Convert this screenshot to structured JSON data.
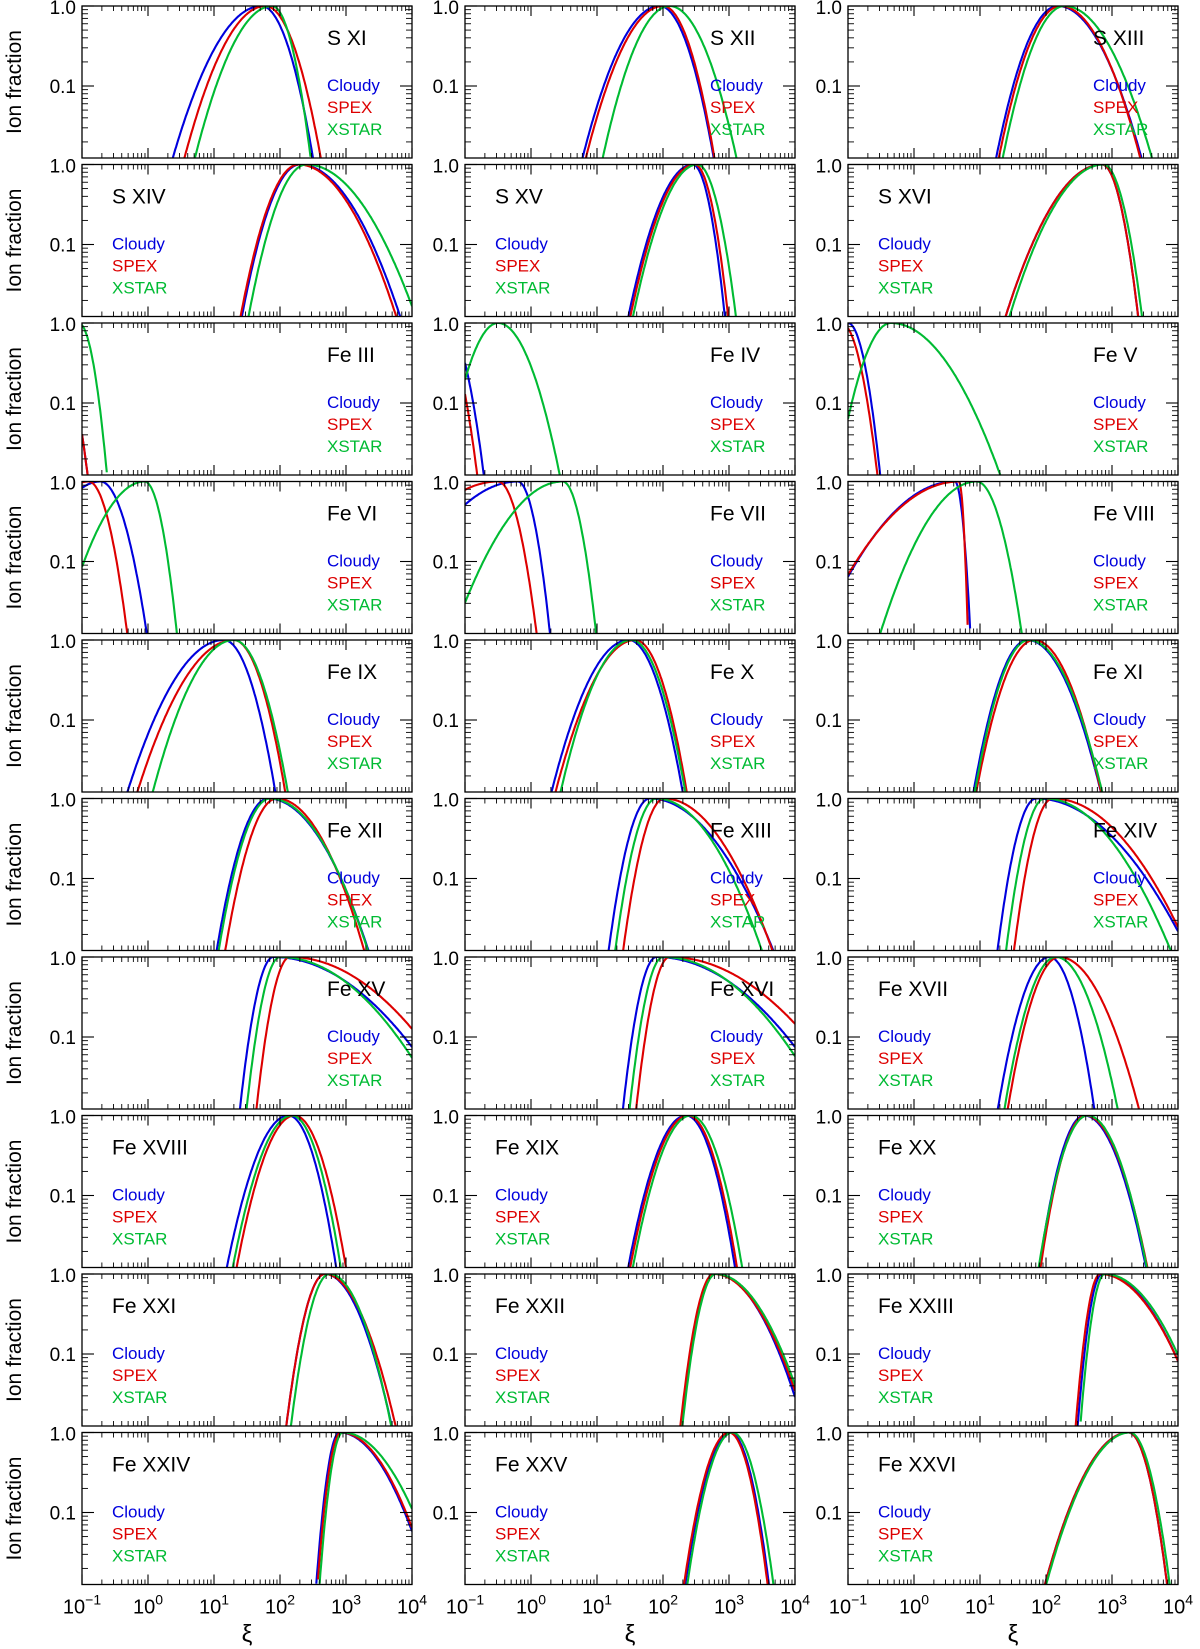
{
  "figure": {
    "ylabel": "Ion fraction",
    "xlabel": "ξ"
  },
  "legend": [
    {
      "name": "Cloudy",
      "color": "#0000dd"
    },
    {
      "name": "SPEX",
      "color": "#dd0000"
    },
    {
      "name": "XSTAR",
      "color": "#00bb33"
    }
  ],
  "axes": {
    "x_log_range": [
      -1,
      4
    ],
    "y_log_range": [
      -1.9,
      0
    ],
    "x_tick_labels": [
      {
        "base": "10",
        "exp": "−1"
      },
      {
        "base": "10",
        "exp": "0"
      },
      {
        "base": "10",
        "exp": "1"
      },
      {
        "base": "10",
        "exp": "2"
      },
      {
        "base": "10",
        "exp": "3"
      },
      {
        "base": "10",
        "exp": "4"
      }
    ],
    "y_tick_labels": [
      "1.0",
      "0.1"
    ]
  },
  "chart_data": {
    "type": "line",
    "xscale": "log",
    "yscale": "log",
    "xlabel": "ξ",
    "ylabel": "Ion fraction",
    "xlim": [
      0.1,
      10000
    ],
    "ylim": [
      0.0126,
      1.0
    ],
    "series_names": [
      "Cloudy",
      "SPEX",
      "XSTAR"
    ],
    "panels": [
      {
        "ion": "S XI",
        "label_pos": "right",
        "curves": [
          [
            1.72,
            0.69,
            -0.4
          ],
          [
            1.78,
            0.63,
            -0.43
          ],
          [
            1.88,
            0.6,
            -0.3
          ]
        ]
      },
      {
        "ion": "S XII",
        "label_pos": "right",
        "curves": [
          [
            1.95,
            0.6,
            -0.42
          ],
          [
            2.0,
            0.6,
            -0.4
          ],
          [
            2.1,
            0.52,
            -0.52
          ]
        ]
      },
      {
        "ion": "S XIII",
        "label_pos": "right",
        "curves": [
          [
            2.18,
            0.48,
            -0.65
          ],
          [
            2.22,
            0.48,
            -0.62
          ],
          [
            2.28,
            0.48,
            -0.68
          ]
        ]
      },
      {
        "ion": "S XIV",
        "label_pos": "left",
        "curves": [
          [
            2.3,
            0.45,
            -0.78
          ],
          [
            2.28,
            0.45,
            -0.76
          ],
          [
            2.4,
            0.45,
            -0.85
          ]
        ]
      },
      {
        "ion": "S XV",
        "label_pos": "left",
        "curves": [
          [
            2.45,
            0.5,
            -0.25
          ],
          [
            2.48,
            0.5,
            -0.26
          ],
          [
            2.52,
            0.5,
            -0.3
          ]
        ]
      },
      {
        "ion": "S XVI",
        "label_pos": "left",
        "curves": [
          [
            2.85,
            0.75,
            -0.28
          ],
          [
            2.85,
            0.75,
            -0.28
          ],
          [
            2.87,
            0.73,
            -0.3
          ]
        ]
      },
      {
        "ion": "Fe III",
        "label_pos": "right",
        "curves": [
          [
            -1.5,
            0.3,
            -0.3
          ],
          [
            -1.5,
            0.3,
            -0.3
          ],
          [
            -1.05,
            0.45,
            -0.22
          ]
        ]
      },
      {
        "ion": "Fe IV",
        "label_pos": "right",
        "curves": [
          [
            -1.3,
            0.45,
            -0.3
          ],
          [
            -1.4,
            0.4,
            -0.3
          ],
          [
            -0.5,
            0.42,
            -0.48
          ]
        ]
      },
      {
        "ion": "Fe V",
        "label_pos": "right",
        "curves": [
          [
            -1.0,
            0.55,
            -0.25
          ],
          [
            -1.1,
            0.5,
            -0.28
          ],
          [
            -0.35,
            0.42,
            -0.85
          ]
        ]
      },
      {
        "ion": "Fe VI",
        "label_pos": "right",
        "curves": [
          [
            -0.72,
            0.7,
            -0.36
          ],
          [
            -0.9,
            0.68,
            -0.3
          ],
          [
            -0.05,
            0.65,
            -0.25
          ]
        ]
      },
      {
        "ion": "Fe VII",
        "label_pos": "right",
        "curves": [
          [
            -0.2,
            1.05,
            -0.25
          ],
          [
            -0.5,
            1.1,
            -0.3
          ],
          [
            0.48,
            0.85,
            -0.26
          ]
        ]
      },
      {
        "ion": "Fe VIII",
        "label_pos": "right",
        "curves": [
          [
            0.62,
            1.05,
            -0.12
          ],
          [
            0.68,
            1.1,
            -0.07
          ],
          [
            0.95,
            0.75,
            -0.35
          ]
        ]
      },
      {
        "ion": "Fe IX",
        "label_pos": "right",
        "curves": [
          [
            1.15,
            0.75,
            -0.4
          ],
          [
            1.3,
            0.75,
            -0.4
          ],
          [
            1.3,
            0.63,
            -0.42
          ]
        ]
      },
      {
        "ion": "Fe X",
        "label_pos": "right",
        "curves": [
          [
            1.48,
            0.6,
            -0.42
          ],
          [
            1.58,
            0.62,
            -0.4
          ],
          [
            1.52,
            0.55,
            -0.42
          ]
        ]
      },
      {
        "ion": "Fe XI",
        "label_pos": "right",
        "curves": [
          [
            1.72,
            0.42,
            -0.57
          ],
          [
            1.82,
            0.45,
            -0.52
          ],
          [
            1.74,
            0.42,
            -0.57
          ]
        ]
      },
      {
        "ion": "Fe XII",
        "label_pos": "right",
        "curves": [
          [
            1.82,
            0.4,
            -0.78
          ],
          [
            1.95,
            0.4,
            -0.68
          ],
          [
            1.85,
            0.4,
            -0.76
          ]
        ]
      },
      {
        "ion": "Fe XIII",
        "label_pos": "right",
        "curves": [
          [
            1.8,
            0.32,
            -0.96
          ],
          [
            2.02,
            0.32,
            -0.84
          ],
          [
            1.9,
            0.32,
            -0.82
          ]
        ]
      },
      {
        "ion": "Fe XIV",
        "label_pos": "right",
        "curves": [
          [
            1.85,
            0.3,
            -1.18
          ],
          [
            2.1,
            0.3,
            -1.06
          ],
          [
            1.98,
            0.3,
            -0.98
          ]
        ]
      },
      {
        "ion": "Fe XV",
        "label_pos": "right",
        "curves": [
          [
            1.9,
            0.26,
            -1.4
          ],
          [
            2.15,
            0.26,
            -1.38
          ],
          [
            2.0,
            0.26,
            -1.26
          ]
        ]
      },
      {
        "ion": "Fe XVI",
        "label_pos": "right",
        "curves": [
          [
            1.9,
            0.26,
            -1.4
          ],
          [
            2.1,
            0.26,
            -1.47
          ],
          [
            2.0,
            0.26,
            -1.27
          ]
        ]
      },
      {
        "ion": "Fe XVII",
        "label_pos": "left",
        "curves": [
          [
            2.05,
            0.4,
            -0.35
          ],
          [
            2.2,
            0.4,
            -0.62
          ],
          [
            2.15,
            0.4,
            -0.48
          ]
        ]
      },
      {
        "ion": "Fe XVIII",
        "label_pos": "left",
        "curves": [
          [
            2.13,
            0.48,
            -0.37
          ],
          [
            2.22,
            0.45,
            -0.4
          ],
          [
            2.18,
            0.46,
            -0.38
          ]
        ]
      },
      {
        "ion": "Fe XIX",
        "label_pos": "left",
        "curves": [
          [
            2.35,
            0.45,
            -0.38
          ],
          [
            2.38,
            0.45,
            -0.38
          ],
          [
            2.42,
            0.45,
            -0.4
          ]
        ]
      },
      {
        "ion": "Fe XX",
        "label_pos": "left",
        "curves": [
          [
            2.58,
            0.35,
            -0.48
          ],
          [
            2.6,
            0.35,
            -0.48
          ],
          [
            2.63,
            0.38,
            -0.46
          ]
        ]
      },
      {
        "ion": "Fe XXI",
        "label_pos": "left",
        "curves": [
          [
            2.68,
            0.3,
            -0.52
          ],
          [
            2.68,
            0.3,
            -0.55
          ],
          [
            2.75,
            0.3,
            -0.48
          ]
        ]
      },
      {
        "ion": "Fe XXII",
        "label_pos": "left",
        "curves": [
          [
            2.79,
            0.26,
            -0.69
          ],
          [
            2.77,
            0.26,
            -0.72
          ],
          [
            2.8,
            0.26,
            -0.72
          ]
        ]
      },
      {
        "ion": "Fe XXIII",
        "label_pos": "left",
        "curves": [
          [
            2.85,
            0.19,
            -0.78
          ],
          [
            2.82,
            0.19,
            -0.8
          ],
          [
            2.89,
            0.19,
            -0.78
          ]
        ]
      },
      {
        "ion": "Fe XXIV",
        "label_pos": "left",
        "curves": [
          [
            2.9,
            0.18,
            -0.7
          ],
          [
            2.92,
            0.18,
            -0.7
          ],
          [
            2.95,
            0.18,
            -0.76
          ]
        ]
      },
      {
        "ion": "Fe XXV",
        "label_pos": "left",
        "curves": [
          [
            3.02,
            0.35,
            -0.3
          ],
          [
            3.0,
            0.35,
            -0.3
          ],
          [
            3.05,
            0.35,
            -0.32
          ]
        ]
      },
      {
        "ion": "Fe XXVI",
        "label_pos": "left",
        "curves": [
          [
            3.25,
            0.65,
            -0.3
          ],
          [
            3.25,
            0.65,
            -0.3
          ],
          [
            3.27,
            0.65,
            -0.31
          ]
        ]
      }
    ]
  }
}
